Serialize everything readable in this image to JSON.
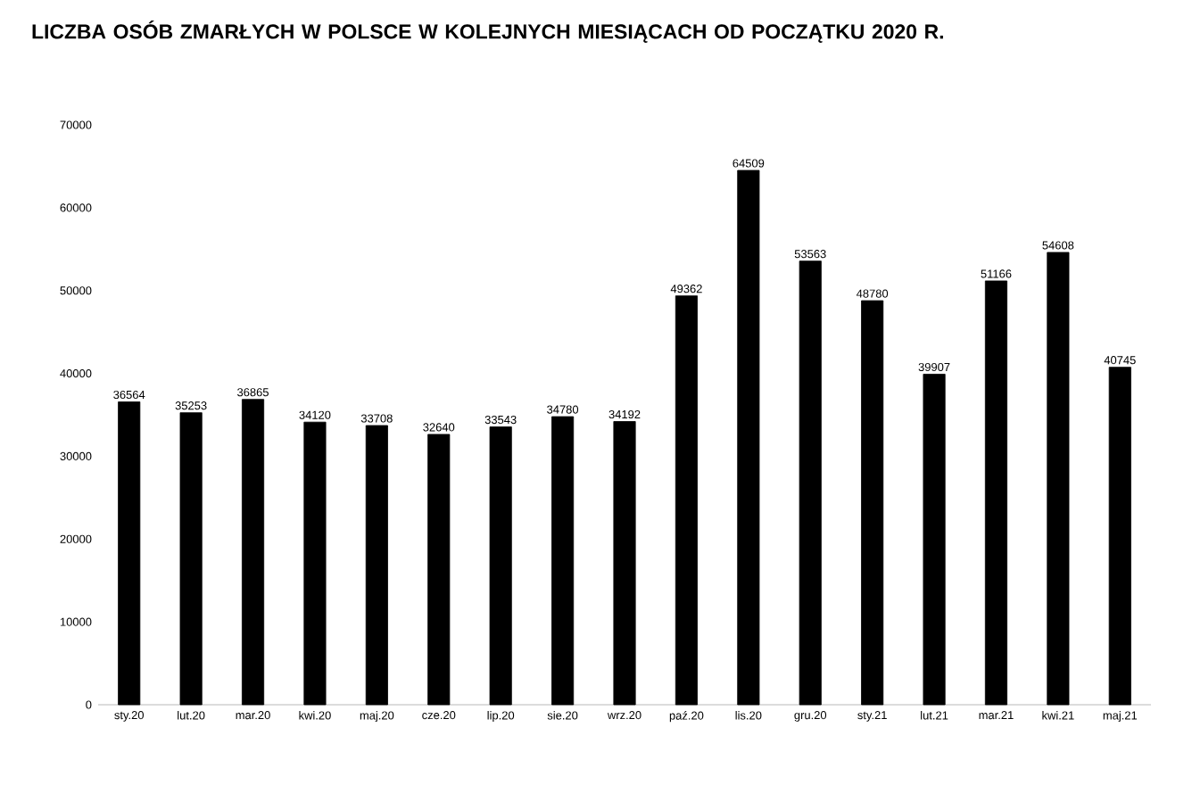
{
  "chart_data": {
    "type": "bar",
    "title": "LICZBA OSÓB ZMARŁYCH W POLSCE W KOLEJNYCH MIESIĄCACH OD POCZĄTKU 2020 R.",
    "categories": [
      "sty.20",
      "lut.20",
      "mar.20",
      "kwi.20",
      "maj.20",
      "cze.20",
      "lip.20",
      "sie.20",
      "wrz.20",
      "paź.20",
      "lis.20",
      "gru.20",
      "sty.21",
      "lut.21",
      "mar.21",
      "kwi.21",
      "maj.21"
    ],
    "values": [
      36564,
      35253,
      36865,
      34120,
      33708,
      32640,
      33543,
      34780,
      34192,
      49362,
      64509,
      53563,
      48780,
      39907,
      51166,
      54608,
      40745
    ],
    "color": "#000000",
    "ylim": [
      0,
      70000
    ],
    "yticks": [
      0,
      10000,
      20000,
      30000,
      40000,
      50000,
      60000,
      70000
    ],
    "data_labels": true
  }
}
